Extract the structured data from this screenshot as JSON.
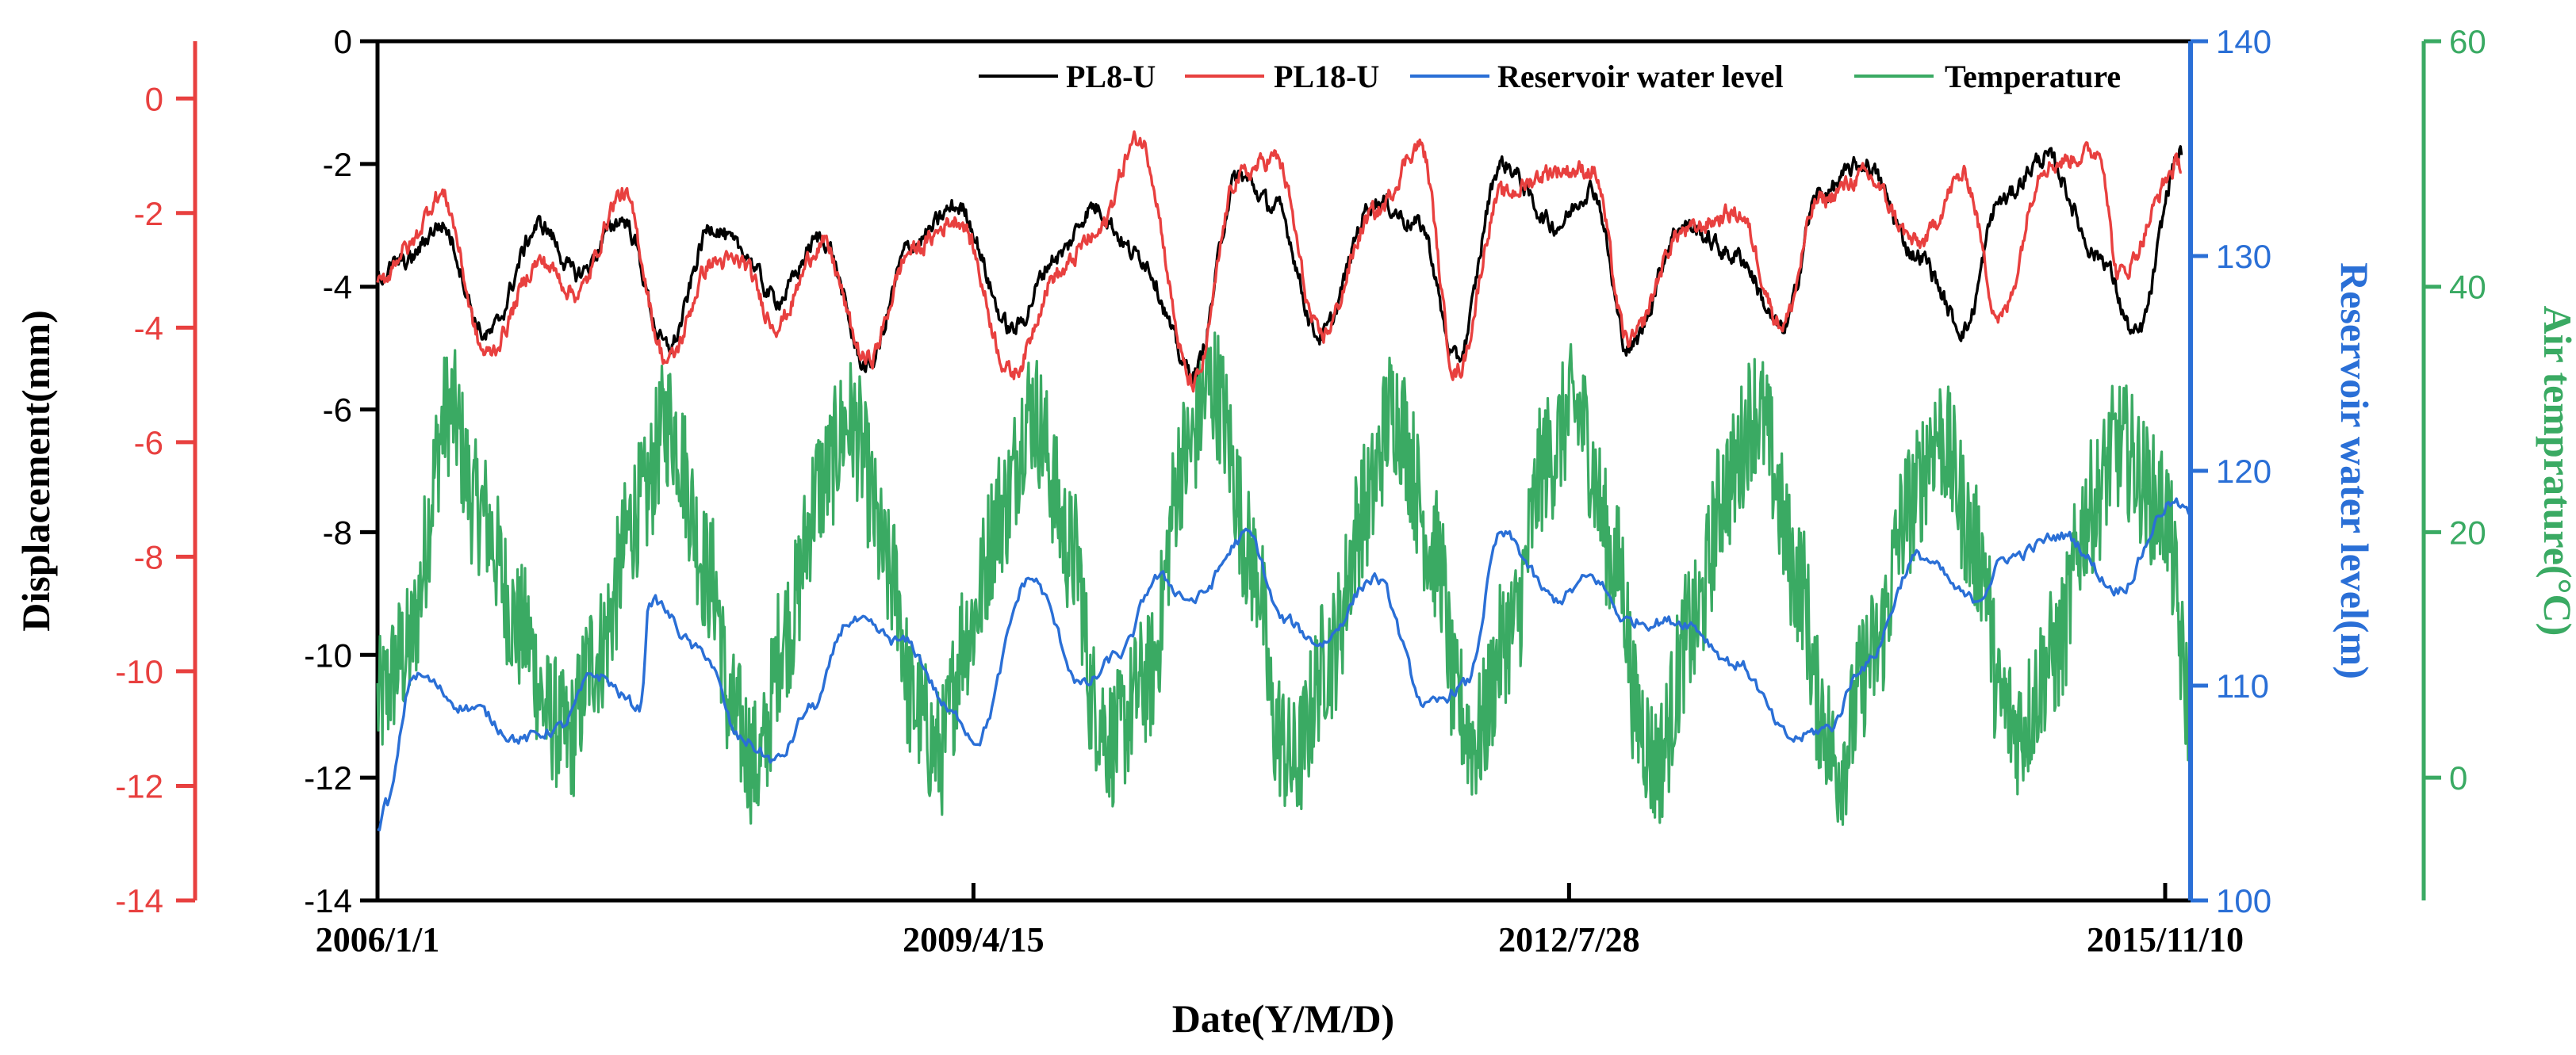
{
  "chart_data": {
    "type": "line",
    "title": "",
    "xlabel": "Date(Y/M/D)",
    "x_ticks": [
      "2006/1/1",
      "2009/4/15",
      "2012/7/28",
      "2015/11/10"
    ],
    "x_range_years": [
      2006.0,
      2016.0
    ],
    "axes": {
      "outer_left": {
        "label": "Displacement(mm)",
        "color": "#e8403f",
        "range": [
          -14,
          1
        ],
        "ticks": [
          "0",
          "-2",
          "-4",
          "-6",
          "-8",
          "-10",
          "-12",
          "-14"
        ]
      },
      "inner_left": {
        "color": "#000000",
        "range": [
          -14,
          0
        ],
        "ticks": [
          "0",
          "-2",
          "-4",
          "-6",
          "-8",
          "-10",
          "-12",
          "-14"
        ]
      },
      "right_blue": {
        "label": "Reservoir water level(m)",
        "color": "#2a6fd6",
        "range": [
          100,
          140
        ],
        "ticks": [
          "100",
          "110",
          "120",
          "130",
          "140"
        ]
      },
      "right_green": {
        "label": "Air temprature(°C)",
        "color": "#3aaa63",
        "range": [
          -10,
          60
        ],
        "ticks": [
          "0",
          "20",
          "40",
          "60"
        ]
      }
    },
    "series": [
      {
        "name": "PL8-U",
        "color": "#000000",
        "axis": "displacement",
        "x": [
          2006.0,
          2006.15,
          2006.35,
          2006.6,
          2006.9,
          2007.1,
          2007.35,
          2007.6,
          2007.85,
          2008.0,
          2008.2,
          2008.45,
          2008.7,
          2008.95,
          2009.2,
          2009.5,
          2009.75,
          2009.95,
          2010.2,
          2010.5,
          2010.75,
          2010.95,
          2011.2,
          2011.5,
          2011.75,
          2011.95,
          2012.2,
          2012.5,
          2012.7,
          2012.9,
          2013.2,
          2013.5,
          2013.75,
          2013.95,
          2014.2,
          2014.5,
          2014.75,
          2014.95,
          2015.2,
          2015.5,
          2015.7,
          2015.95
        ],
        "values": [
          -3.8,
          -3.6,
          -3.0,
          -4.8,
          -3.0,
          -3.8,
          -2.9,
          -5.0,
          -3.0,
          -3.4,
          -4.2,
          -3.2,
          -5.3,
          -3.3,
          -2.7,
          -4.7,
          -3.5,
          -2.7,
          -3.5,
          -5.4,
          -2.2,
          -2.7,
          -4.8,
          -2.6,
          -3.0,
          -5.2,
          -2.0,
          -3.0,
          -2.4,
          -5.0,
          -3.0,
          -3.5,
          -4.7,
          -2.5,
          -2.0,
          -3.5,
          -4.7,
          -2.6,
          -1.9,
          -3.5,
          -4.8,
          -1.8
        ]
      },
      {
        "name": "PL18-U",
        "color": "#e8403f",
        "axis": "displacement",
        "x": [
          2006.0,
          2006.15,
          2006.35,
          2006.6,
          2006.9,
          2007.1,
          2007.35,
          2007.6,
          2007.85,
          2008.0,
          2008.2,
          2008.45,
          2008.7,
          2008.95,
          2009.2,
          2009.5,
          2009.75,
          2009.95,
          2010.2,
          2010.5,
          2010.75,
          2010.95,
          2011.2,
          2011.5,
          2011.75,
          2011.95,
          2012.2,
          2012.5,
          2012.7,
          2012.9,
          2013.2,
          2013.5,
          2013.75,
          2013.95,
          2014.2,
          2014.5,
          2014.75,
          2014.95,
          2015.2,
          2015.5,
          2015.6,
          2015.95
        ],
        "values": [
          -4.0,
          -3.4,
          -2.5,
          -5.1,
          -3.6,
          -4.1,
          -2.5,
          -5.2,
          -3.6,
          -3.6,
          -4.6,
          -3.3,
          -5.2,
          -3.4,
          -2.9,
          -5.4,
          -3.8,
          -3.2,
          -1.6,
          -5.6,
          -2.2,
          -1.9,
          -4.8,
          -2.8,
          -1.7,
          -5.4,
          -2.5,
          -2.1,
          -2.1,
          -4.9,
          -3.1,
          -2.8,
          -4.6,
          -2.6,
          -2.2,
          -3.3,
          -2.2,
          -4.5,
          -2.0,
          -1.8,
          -3.8,
          -2.0
        ]
      },
      {
        "name": "Reservoir water level",
        "color": "#2a6fd6",
        "axis": "reservoir",
        "x": [
          2006.0,
          2006.05,
          2006.2,
          2006.5,
          2006.8,
          2007.0,
          2007.2,
          2007.45,
          2007.5,
          2007.8,
          2008.0,
          2008.2,
          2008.4,
          2008.6,
          2008.9,
          2009.2,
          2009.3,
          2009.6,
          2009.9,
          2010.1,
          2010.3,
          2010.5,
          2010.8,
          2011.0,
          2011.2,
          2011.5,
          2011.8,
          2012.0,
          2012.2,
          2012.5,
          2012.7,
          2012.9,
          2013.2,
          2013.5,
          2013.8,
          2014.0,
          2014.2,
          2014.5,
          2014.8,
          2015.0,
          2015.3,
          2015.6,
          2015.9,
          2016.0
        ],
        "values": [
          103.5,
          104.5,
          110.5,
          109,
          107.5,
          108,
          110.5,
          109,
          114,
          111.5,
          107.5,
          106.5,
          109,
          113,
          112,
          108.5,
          107.5,
          115,
          110,
          111.5,
          115,
          114,
          117,
          113,
          112,
          115,
          109,
          110,
          117,
          114,
          115,
          113,
          113,
          111,
          107.5,
          108,
          111,
          116,
          114,
          116,
          117,
          114.5,
          118.5,
          118
        ]
      },
      {
        "name": "Temperature",
        "color": "#3aaa63",
        "axis": "temperature",
        "x": [
          2006.0,
          2006.15,
          2006.4,
          2006.55,
          2006.8,
          2006.95,
          2007.05,
          2007.2,
          2007.45,
          2007.6,
          2007.85,
          2007.95,
          2008.1,
          2008.25,
          2008.45,
          2008.6,
          2008.85,
          2008.95,
          2009.1,
          2009.25,
          2009.45,
          2009.6,
          2009.85,
          2009.95,
          2010.05,
          2010.25,
          2010.45,
          2010.6,
          2010.85,
          2010.95,
          2011.05,
          2011.25,
          2011.45,
          2011.6,
          2011.85,
          2011.95,
          2012.05,
          2012.25,
          2012.45,
          2012.6,
          2012.85,
          2012.95,
          2013.05,
          2013.25,
          2013.45,
          2013.6,
          2013.85,
          2013.95,
          2014.05,
          2014.25,
          2014.45,
          2014.6,
          2014.85,
          2014.95,
          2015.05,
          2015.25,
          2015.45,
          2015.6,
          2015.85,
          2016.0
        ],
        "values": [
          6,
          10,
          30,
          22,
          12,
          5,
          3,
          10,
          22,
          29,
          16,
          5,
          1,
          12,
          24,
          29,
          16,
          6,
          2,
          12,
          22,
          30,
          18,
          6,
          3,
          8,
          26,
          32,
          17,
          4,
          1,
          10,
          22,
          30,
          18,
          6,
          3,
          12,
          26,
          30,
          17,
          5,
          1,
          12,
          24,
          30,
          16,
          6,
          1,
          10,
          22,
          28,
          18,
          6,
          4,
          10,
          22,
          27,
          22,
          6
        ]
      }
    ],
    "legend": [
      "PL8-U",
      "PL18-U",
      "Reservoir water level",
      "Temperature"
    ],
    "legend_position": "top-right",
    "grid": false
  }
}
